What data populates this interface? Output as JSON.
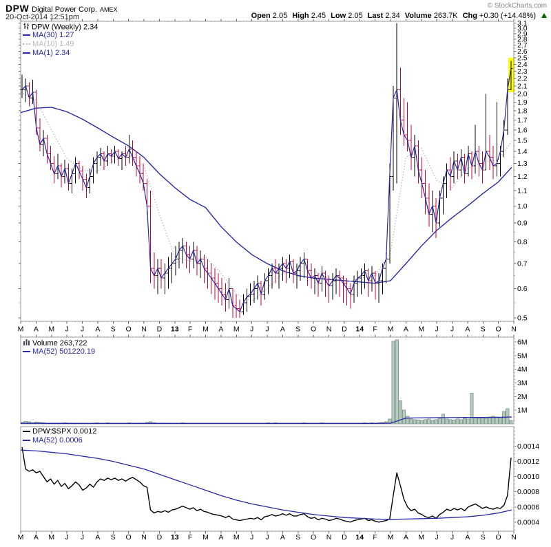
{
  "header": {
    "symbol": "DPW",
    "company": "Digital Power Corp.",
    "exchange": "AMEX",
    "datetime": "20-Oct-2014 12:51pm",
    "copyright": "© StockCharts.com",
    "quote": [
      {
        "label": "Open",
        "value": "2.05"
      },
      {
        "label": "High",
        "value": "2.45"
      },
      {
        "label": "Low",
        "value": "2.05"
      },
      {
        "label": "Last",
        "value": "2.34"
      },
      {
        "label": "Volume",
        "value": "263.7K"
      },
      {
        "label": "Chg",
        "value": "+0.30 (+14.48%)"
      }
    ],
    "chg_direction": "up-triangle"
  },
  "colors": {
    "ma_blue": "#2726a6",
    "ma10_gray": "#b9b9b9",
    "down_red": "#cc0033",
    "up_black": "#000000",
    "volume_fill": "#b7cbc0",
    "volume_stroke": "#87a094",
    "highlight_yellow": "#ffff00",
    "chg_green": "#006600",
    "border_gray": "#999999",
    "tick_gray": "#666666"
  },
  "main_chart": {
    "legend": {
      "title": "DPW (Weekly) 2.34",
      "ma30": "MA(30) 1.27",
      "ma10": "MA(10) 1.49",
      "ma1": "MA(1) 2.34"
    }
  },
  "volume_panel": {
    "legend": {
      "title": "Volume 263,722",
      "ma52": "MA(52) 501220.19"
    }
  },
  "ratio_panel": {
    "legend": {
      "title": "DPW:$SPX 0.0012",
      "ma52": "MA(52) 0.0006"
    }
  },
  "chart_data": [
    {
      "type": "ohlc",
      "title": "DPW (Weekly)",
      "scale": "log",
      "ylim": [
        0.49,
        3.13
      ],
      "price_tick_labels": [
        "0.5",
        "0.6",
        "0.7",
        "0.8",
        "0.9",
        "1.0",
        "1.1",
        "1.2",
        "1.3",
        "1.4",
        "1.5",
        "1.6",
        "1.7",
        "1.8",
        "1.9",
        "2.0",
        "2.1",
        "2.2",
        "2.3",
        "2.4",
        "2.5",
        "2.6",
        "2.7",
        "2.8",
        "2.9",
        "3.0",
        "3.1"
      ],
      "month_labels": [
        "M",
        "A",
        "M",
        "J",
        "J",
        "A",
        "S",
        "O",
        "N",
        "D",
        "13",
        "F",
        "M",
        "A",
        "M",
        "J",
        "J",
        "A",
        "S",
        "O",
        "N",
        "D",
        "14",
        "F",
        "M",
        "A",
        "M",
        "J",
        "J",
        "A",
        "S",
        "O",
        "N"
      ],
      "year_labels": [
        "13",
        "14"
      ],
      "bars": [
        [
          2.25,
          1.95,
          2.05
        ],
        [
          2.2,
          1.9,
          2.1
        ],
        [
          2.15,
          1.85,
          1.95
        ],
        [
          2.18,
          1.88,
          2.02
        ],
        [
          2.05,
          1.55,
          1.62
        ],
        [
          1.72,
          1.4,
          1.46
        ],
        [
          1.6,
          1.36,
          1.52
        ],
        [
          1.55,
          1.3,
          1.38
        ],
        [
          1.45,
          1.25,
          1.3
        ],
        [
          1.36,
          1.15,
          1.22
        ],
        [
          1.38,
          1.18,
          1.28
        ],
        [
          1.3,
          1.12,
          1.2
        ],
        [
          1.33,
          1.15,
          1.26
        ],
        [
          1.3,
          1.1,
          1.15
        ],
        [
          1.26,
          1.08,
          1.22
        ],
        [
          1.35,
          1.15,
          1.3
        ],
        [
          1.32,
          1.18,
          1.24
        ],
        [
          1.28,
          1.1,
          1.18
        ],
        [
          1.22,
          1.05,
          1.12
        ],
        [
          1.26,
          1.08,
          1.2
        ],
        [
          1.35,
          1.15,
          1.3
        ],
        [
          1.4,
          1.22,
          1.35
        ],
        [
          1.43,
          1.28,
          1.38
        ],
        [
          1.4,
          1.25,
          1.32
        ],
        [
          1.45,
          1.28,
          1.38
        ],
        [
          1.42,
          1.3,
          1.36
        ],
        [
          1.45,
          1.3,
          1.4
        ],
        [
          1.42,
          1.28,
          1.34
        ],
        [
          1.4,
          1.25,
          1.38
        ],
        [
          1.45,
          1.28,
          1.35
        ],
        [
          1.55,
          1.3,
          1.42
        ],
        [
          1.5,
          1.28,
          1.35
        ],
        [
          1.4,
          1.2,
          1.28
        ],
        [
          1.36,
          1.15,
          1.22
        ],
        [
          1.3,
          1.1,
          1.15
        ],
        [
          1.18,
          0.95,
          1.0
        ],
        [
          1.1,
          0.62,
          0.68
        ],
        [
          0.75,
          0.6,
          0.65
        ],
        [
          0.72,
          0.58,
          0.68
        ],
        [
          0.72,
          0.6,
          0.64
        ],
        [
          0.7,
          0.58,
          0.66
        ],
        [
          0.73,
          0.6,
          0.68
        ],
        [
          0.75,
          0.62,
          0.7
        ],
        [
          0.78,
          0.65,
          0.72
        ],
        [
          0.8,
          0.68,
          0.76
        ],
        [
          0.82,
          0.7,
          0.78
        ],
        [
          0.8,
          0.68,
          0.74
        ],
        [
          0.78,
          0.66,
          0.72
        ],
        [
          0.8,
          0.68,
          0.76
        ],
        [
          0.78,
          0.65,
          0.7
        ],
        [
          0.76,
          0.64,
          0.72
        ],
        [
          0.74,
          0.62,
          0.68
        ],
        [
          0.72,
          0.6,
          0.66
        ],
        [
          0.7,
          0.58,
          0.64
        ],
        [
          0.68,
          0.56,
          0.62
        ],
        [
          0.66,
          0.55,
          0.6
        ],
        [
          0.64,
          0.54,
          0.58
        ],
        [
          0.62,
          0.52,
          0.56
        ],
        [
          0.64,
          0.53,
          0.6
        ],
        [
          0.6,
          0.5,
          0.54
        ],
        [
          0.58,
          0.5,
          0.53
        ],
        [
          0.56,
          0.5,
          0.52
        ],
        [
          0.58,
          0.51,
          0.55
        ],
        [
          0.6,
          0.52,
          0.57
        ],
        [
          0.62,
          0.54,
          0.58
        ],
        [
          0.63,
          0.55,
          0.6
        ],
        [
          0.65,
          0.56,
          0.62
        ],
        [
          0.63,
          0.54,
          0.58
        ],
        [
          0.66,
          0.56,
          0.63
        ],
        [
          0.68,
          0.58,
          0.65
        ],
        [
          0.7,
          0.6,
          0.68
        ],
        [
          0.72,
          0.62,
          0.66
        ],
        [
          0.7,
          0.6,
          0.68
        ],
        [
          0.73,
          0.63,
          0.7
        ],
        [
          0.72,
          0.62,
          0.68
        ],
        [
          0.74,
          0.64,
          0.71
        ],
        [
          0.72,
          0.62,
          0.66
        ],
        [
          0.7,
          0.6,
          0.67
        ],
        [
          0.73,
          0.63,
          0.7
        ],
        [
          0.75,
          0.64,
          0.72
        ],
        [
          0.72,
          0.61,
          0.67
        ],
        [
          0.7,
          0.6,
          0.64
        ],
        [
          0.68,
          0.58,
          0.65
        ],
        [
          0.66,
          0.57,
          0.62
        ],
        [
          0.69,
          0.59,
          0.66
        ],
        [
          0.67,
          0.57,
          0.63
        ],
        [
          0.65,
          0.55,
          0.61
        ],
        [
          0.66,
          0.56,
          0.63
        ],
        [
          0.68,
          0.58,
          0.65
        ],
        [
          0.67,
          0.57,
          0.64
        ],
        [
          0.65,
          0.55,
          0.62
        ],
        [
          0.64,
          0.54,
          0.6
        ],
        [
          0.62,
          0.53,
          0.58
        ],
        [
          0.65,
          0.55,
          0.62
        ],
        [
          0.67,
          0.57,
          0.64
        ],
        [
          0.68,
          0.58,
          0.65
        ],
        [
          0.7,
          0.6,
          0.67
        ],
        [
          0.68,
          0.57,
          0.63
        ],
        [
          0.69,
          0.59,
          0.66
        ],
        [
          0.67,
          0.56,
          0.62
        ],
        [
          0.66,
          0.55,
          0.63
        ],
        [
          0.7,
          0.58,
          0.68
        ],
        [
          0.75,
          0.62,
          0.72
        ],
        [
          1.3,
          0.7,
          1.2
        ],
        [
          2.1,
          1.1,
          1.95
        ],
        [
          3.1,
          1.15,
          2.05
        ],
        [
          2.35,
          1.55,
          1.7
        ],
        [
          1.95,
          1.45,
          1.55
        ],
        [
          1.9,
          1.4,
          1.5
        ],
        [
          1.65,
          1.25,
          1.35
        ],
        [
          1.55,
          1.2,
          1.45
        ],
        [
          1.5,
          1.15,
          1.25
        ],
        [
          1.35,
          1.05,
          1.15
        ],
        [
          1.25,
          0.95,
          1.05
        ],
        [
          1.15,
          0.88,
          0.95
        ],
        [
          1.1,
          0.85,
          1.0
        ],
        [
          1.05,
          0.82,
          0.9
        ],
        [
          1.1,
          0.88,
          1.05
        ],
        [
          1.2,
          0.95,
          1.15
        ],
        [
          1.3,
          1.05,
          1.25
        ],
        [
          1.35,
          1.1,
          1.2
        ],
        [
          1.4,
          1.15,
          1.32
        ],
        [
          1.38,
          1.18,
          1.25
        ],
        [
          1.42,
          1.2,
          1.35
        ],
        [
          1.38,
          1.15,
          1.22
        ],
        [
          1.45,
          1.2,
          1.38
        ],
        [
          1.4,
          1.18,
          1.28
        ],
        [
          1.65,
          1.22,
          1.4
        ],
        [
          1.45,
          1.2,
          1.3
        ],
        [
          1.4,
          1.15,
          1.25
        ],
        [
          2.0,
          1.25,
          1.4
        ],
        [
          1.55,
          1.25,
          1.35
        ],
        [
          1.45,
          1.18,
          1.28
        ],
        [
          1.9,
          1.2,
          1.3
        ],
        [
          1.45,
          1.2,
          1.4
        ],
        [
          1.7,
          1.35,
          1.6
        ],
        [
          2.2,
          1.55,
          2.05
        ],
        [
          2.45,
          2.05,
          2.34
        ]
      ],
      "ma30_monthly": [
        1.78,
        1.83,
        1.84,
        1.79,
        1.71,
        1.62,
        1.53,
        1.45,
        1.35,
        1.22,
        1.12,
        1.04,
        0.99,
        0.88,
        0.8,
        0.74,
        0.7,
        0.67,
        0.65,
        0.64,
        0.635,
        0.63,
        0.625,
        0.62,
        0.63,
        0.7,
        0.78,
        0.86,
        0.93,
        1.0,
        1.08,
        1.16,
        1.27
      ],
      "ma10_monthly": [
        2.02,
        1.92,
        1.6,
        1.34,
        1.25,
        1.24,
        1.32,
        1.37,
        1.28,
        0.95,
        0.73,
        0.71,
        0.73,
        0.66,
        0.58,
        0.555,
        0.6,
        0.66,
        0.69,
        0.67,
        0.64,
        0.62,
        0.64,
        0.65,
        0.75,
        1.35,
        1.43,
        1.17,
        1.12,
        1.26,
        1.31,
        1.33,
        1.49
      ],
      "highlight": {
        "bar_index": 137,
        "from": 2.02,
        "to": 2.5
      }
    },
    {
      "type": "bar",
      "name": "volume",
      "ylim": [
        0,
        6.35
      ],
      "tick_values": [
        1,
        2,
        3,
        4,
        5,
        6
      ],
      "tick_labels": [
        "1M",
        "2M",
        "3M",
        "4M",
        "5M",
        "6M"
      ],
      "values_millions": [
        0.1,
        0.18,
        0.15,
        0.08,
        0.12,
        0.09,
        0.07,
        0.06,
        0.05,
        0.06,
        0.04,
        0.05,
        0.07,
        0.05,
        0.04,
        0.06,
        0.05,
        0.04,
        0.05,
        0.03,
        0.06,
        0.08,
        0.06,
        0.05,
        0.07,
        0.05,
        0.06,
        0.05,
        0.04,
        0.05,
        0.07,
        0.05,
        0.06,
        0.04,
        0.05,
        0.09,
        0.15,
        0.08,
        0.06,
        0.05,
        0.06,
        0.04,
        0.05,
        0.06,
        0.05,
        0.07,
        0.05,
        0.04,
        0.06,
        0.05,
        0.04,
        0.05,
        0.05,
        0.04,
        0.06,
        0.04,
        0.05,
        0.04,
        0.05,
        0.06,
        0.04,
        0.05,
        0.06,
        0.05,
        0.04,
        0.05,
        0.04,
        0.06,
        0.05,
        0.08,
        0.06,
        0.07,
        0.05,
        0.06,
        0.05,
        0.06,
        0.04,
        0.05,
        0.06,
        0.07,
        0.05,
        0.04,
        0.06,
        0.05,
        0.07,
        0.05,
        0.04,
        0.05,
        0.06,
        0.04,
        0.05,
        0.04,
        0.05,
        0.06,
        0.05,
        0.06,
        0.08,
        0.05,
        0.07,
        0.06,
        0.08,
        0.1,
        0.15,
        0.35,
        6.05,
        6.15,
        1.7,
        1.0,
        0.55,
        0.35,
        0.3,
        0.28,
        0.25,
        0.3,
        0.35,
        0.25,
        0.3,
        0.4,
        0.7,
        0.35,
        0.3,
        0.28,
        0.35,
        0.3,
        0.4,
        0.35,
        2.25,
        0.45,
        0.4,
        0.45,
        0.4,
        0.5,
        0.55,
        0.5,
        0.45,
        0.9,
        1.1,
        0.26
      ],
      "ma52_monthly": [
        0.04,
        0.04,
        0.035,
        0.035,
        0.03,
        0.03,
        0.03,
        0.03,
        0.035,
        0.035,
        0.03,
        0.03,
        0.03,
        0.03,
        0.03,
        0.03,
        0.03,
        0.03,
        0.03,
        0.03,
        0.03,
        0.03,
        0.03,
        0.03,
        0.05,
        0.42,
        0.44,
        0.45,
        0.46,
        0.47,
        0.47,
        0.48,
        0.5
      ]
    },
    {
      "type": "line",
      "name": "DPW:$SPX",
      "ylim": [
        0.00028,
        0.00166
      ],
      "tick_values": [
        0.0004,
        0.0006,
        0.0008,
        0.001,
        0.0012,
        0.0014
      ],
      "tick_labels": [
        "0.0004",
        "0.0006",
        "0.0008",
        "0.0010",
        "0.0012",
        "0.0014"
      ],
      "values": [
        0.00139,
        0.0011,
        0.00107,
        0.00109,
        0.00105,
        0.00107,
        0.001,
        0.00093,
        0.00097,
        0.0009,
        0.00095,
        0.00087,
        0.00091,
        0.00084,
        0.00088,
        0.00093,
        0.00089,
        0.00082,
        0.00085,
        0.0009,
        0.00086,
        0.00093,
        0.00097,
        0.00095,
        0.00098,
        0.00096,
        0.00098,
        0.00095,
        0.00097,
        0.00094,
        0.00097,
        0.00099,
        0.00096,
        0.00093,
        0.00088,
        0.00086,
        0.00056,
        0.00052,
        0.00054,
        0.00053,
        0.00055,
        0.00053,
        0.00056,
        0.00057,
        0.00059,
        0.00061,
        0.00059,
        0.00057,
        0.00059,
        0.00055,
        0.00057,
        0.00054,
        0.00053,
        0.00051,
        0.0005,
        0.00049,
        0.00048,
        0.00046,
        0.00048,
        0.00044,
        0.00043,
        0.00042,
        0.00043,
        0.00044,
        0.00045,
        0.00044,
        0.00046,
        0.00043,
        0.00047,
        0.00048,
        0.0005,
        0.00048,
        0.00049,
        0.00051,
        0.00049,
        0.00051,
        0.00048,
        0.00048,
        0.0005,
        0.00051,
        0.00047,
        0.00045,
        0.00046,
        0.00043,
        0.00045,
        0.00044,
        0.00042,
        0.00043,
        0.00045,
        0.00044,
        0.00042,
        0.00041,
        0.0004,
        0.00042,
        0.00043,
        0.00044,
        0.00045,
        0.00042,
        0.00043,
        0.00041,
        0.0004,
        0.00041,
        0.00042,
        0.00044,
        0.00075,
        0.00105,
        0.00088,
        0.0007,
        0.0006,
        0.00055,
        0.00057,
        0.00052,
        0.0005,
        0.00047,
        0.00046,
        0.00048,
        0.00045,
        0.0005,
        0.00053,
        0.00057,
        0.00055,
        0.00058,
        0.00056,
        0.00058,
        0.00055,
        0.0006,
        0.00062,
        0.00064,
        0.00061,
        0.00058,
        0.0006,
        0.00058,
        0.00057,
        0.00059,
        0.00058,
        0.00062,
        0.00075,
        0.00125
      ],
      "ma52_monthly": [
        0.00135,
        0.00134,
        0.00132,
        0.0013,
        0.00127,
        0.00124,
        0.0012,
        0.00115,
        0.0011,
        0.00103,
        0.00096,
        0.00089,
        0.00082,
        0.00075,
        0.00069,
        0.00064,
        0.0006,
        0.00056,
        0.00053,
        0.0005,
        0.00048,
        0.00046,
        0.00045,
        0.00044,
        0.000435,
        0.00044,
        0.000445,
        0.00045,
        0.00046,
        0.00047,
        0.00049,
        0.00052,
        0.00056
      ]
    }
  ]
}
